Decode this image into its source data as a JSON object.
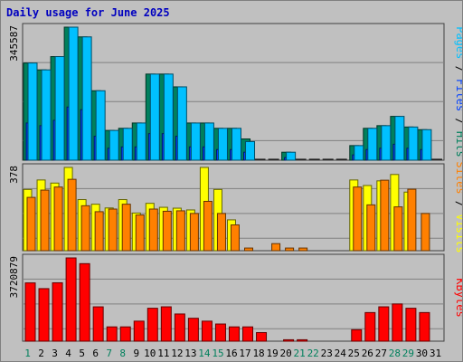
{
  "title": "Daily usage for June 2025",
  "colors": {
    "title": "#0000c0",
    "background": "#c0c0c0",
    "hits": "#00805c",
    "files": "#0040ff",
    "pages": "#00c0ff",
    "visits": "#ffff00",
    "sites": "#ff8000",
    "kbytes": "#ff0000",
    "weekend": "#00805c",
    "weekday": "#000000",
    "grid": "#808080"
  },
  "chart_data": {
    "type": "bar",
    "categories": [
      "1",
      "2",
      "3",
      "4",
      "5",
      "6",
      "7",
      "8",
      "9",
      "10",
      "11",
      "12",
      "13",
      "14",
      "15",
      "16",
      "17",
      "18",
      "19",
      "20",
      "21",
      "22",
      "23",
      "24",
      "25",
      "26",
      "27",
      "28",
      "29",
      "30",
      "31"
    ],
    "weekend_days": [
      "1",
      "7",
      "8",
      "14",
      "15",
      "21",
      "22",
      "28",
      "29"
    ],
    "panels": [
      {
        "id": "hits",
        "axis_max_label": "345587",
        "max": 345587,
        "right_label": [
          {
            "text": "Pages",
            "color": "#00c0ff"
          },
          {
            "text": " / ",
            "color": "#000000"
          },
          {
            "text": "Files",
            "color": "#0040ff"
          },
          {
            "text": " / ",
            "color": "#000000"
          },
          {
            "text": "Hits",
            "color": "#00805c"
          }
        ],
        "series": [
          {
            "name": "Hits",
            "color": "#00805c",
            "values": [
              252500,
              234600,
              269100,
              345587,
              320300,
              180400,
              77300,
              82800,
              96600,
              223700,
              223700,
              190500,
              96600,
              96600,
              82800,
              82800,
              55200,
              0,
              0,
              20700,
              0,
              0,
              0,
              0,
              37900,
              82800,
              89700,
              113800,
              86200,
              79300,
              0
            ]
          },
          {
            "name": "Files",
            "color": "#0040ff",
            "values": [
              96600,
              89700,
              103500,
              138100,
              131200,
              62100,
              31100,
              34500,
              34500,
              69000,
              69000,
              62100,
              34500,
              34500,
              27600,
              27600,
              20700,
              0,
              0,
              6900,
              0,
              0,
              0,
              0,
              13800,
              27600,
              31100,
              41400,
              31100,
              27600,
              0
            ]
          },
          {
            "name": "Pages",
            "color": "#00c0ff",
            "values": [
              252500,
              234600,
              269100,
              345587,
              320300,
              180400,
              77300,
              82800,
              96600,
              223700,
              223700,
              190500,
              96600,
              96600,
              82800,
              82800,
              48300,
              0,
              0,
              20700,
              0,
              0,
              0,
              0,
              37900,
              82800,
              89700,
              113800,
              86200,
              79300,
              0
            ]
          }
        ]
      },
      {
        "id": "visits",
        "axis_max_label": "378",
        "max": 378,
        "right_label": [
          {
            "text": "Sites",
            "color": "#ff8000"
          },
          {
            "text": " / ",
            "color": "#000000"
          },
          {
            "text": "Visits",
            "color": "#ffff00"
          }
        ],
        "series": [
          {
            "name": "Visits",
            "color": "#ffff00",
            "values": [
              278,
              321,
              307,
              378,
              232,
              211,
              194,
              232,
              171,
              215,
              197,
              193,
              185,
              378,
              278,
              140,
              0,
              0,
              0,
              0,
              0,
              0,
              0,
              0,
              321,
              296,
              317,
              346,
              266,
              0,
              0
            ]
          },
          {
            "name": "Sites",
            "color": "#ff8000",
            "values": [
              242,
              275,
              289,
              324,
              204,
              177,
              189,
              211,
              162,
              189,
              179,
              181,
              169,
              224,
              169,
              117,
              12,
              0,
              32,
              12,
              12,
              0,
              0,
              0,
              289,
              208,
              320,
              199,
              279,
              169,
              0
            ]
          }
        ]
      },
      {
        "id": "kbytes",
        "axis_max_label": "3720879",
        "max": 3720879,
        "right_label": [
          {
            "text": "KBytes",
            "color": "#ff0000"
          }
        ],
        "series": [
          {
            "name": "KBytes",
            "color": "#ff0000",
            "values": [
              2604600,
              2348800,
              2610200,
              3720879,
              3465000,
              1534500,
              639500,
              639500,
              895300,
              1471700,
              1535500,
              1215800,
              1023900,
              895300,
              767500,
              639500,
              639500,
              384000,
              0,
              64200,
              64200,
              0,
              0,
              0,
              512200,
              1279300,
              1535500,
              1663400,
              1471700,
              1279300,
              0
            ]
          }
        ]
      }
    ]
  }
}
